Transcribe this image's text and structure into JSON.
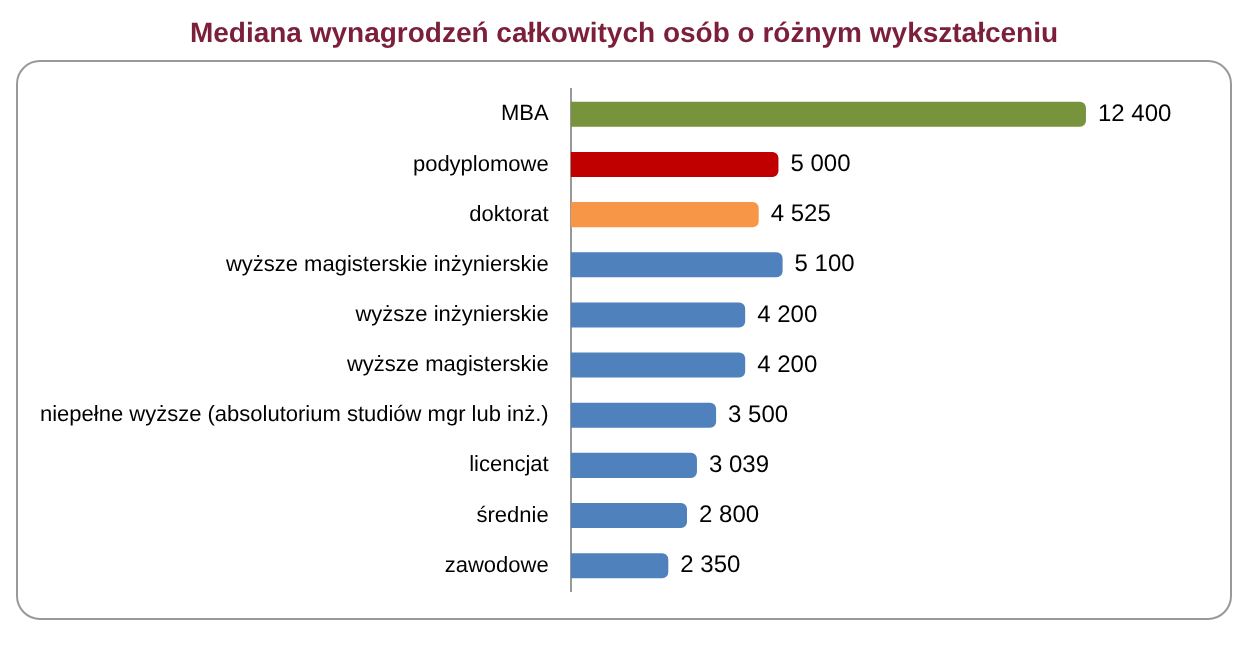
{
  "chart_data": {
    "type": "bar",
    "orientation": "horizontal",
    "title": "Mediana wynagrodzeń całkowitych osób o różnym wykształceniu",
    "categories": [
      "MBA",
      "podyplomowe",
      "doktorat",
      "wyższe magisterskie inżynierskie",
      "wyższe inżynierskie",
      "wyższe magisterskie",
      "niepełne wyższe (absolutorium studiów mgr lub inż.)",
      "licencjat",
      "średnie",
      "zawodowe"
    ],
    "values": [
      12400,
      5000,
      4525,
      5100,
      4200,
      4200,
      3500,
      3039,
      2800,
      2350
    ],
    "colors": [
      "#77933c",
      "#c00000",
      "#f79646",
      "#4f81bd",
      "#4f81bd",
      "#4f81bd",
      "#4f81bd",
      "#4f81bd",
      "#4f81bd",
      "#4f81bd"
    ],
    "value_labels": [
      "12 400",
      "5 000",
      "4 525",
      "5 100",
      "4 200",
      "4 200",
      "3 500",
      "3 039",
      "2 800",
      "2 350"
    ],
    "legend": false
  }
}
